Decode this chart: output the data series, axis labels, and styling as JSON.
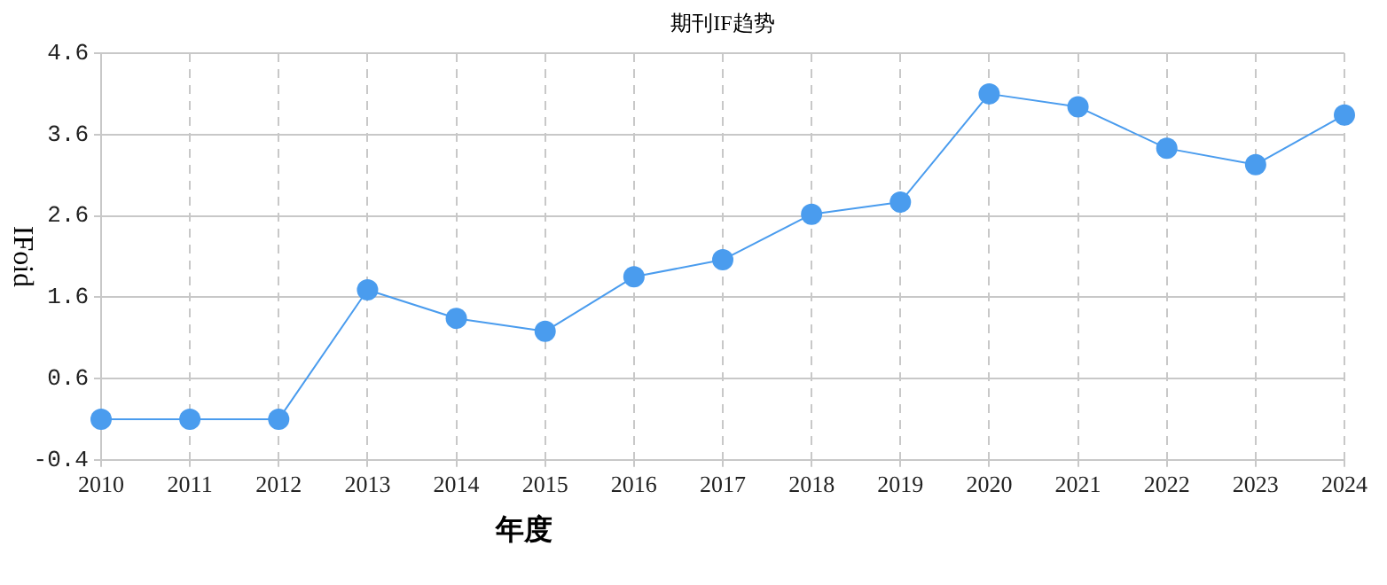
{
  "chart_data": {
    "type": "line",
    "title": "期刊IF趋势",
    "xlabel": "年度",
    "ylabel": "IFoid",
    "categories": [
      "2010",
      "2011",
      "2012",
      "2013",
      "2014",
      "2015",
      "2016",
      "2017",
      "2018",
      "2019",
      "2020",
      "2021",
      "2022",
      "2023",
      "2024"
    ],
    "series": [
      {
        "color": "#4a9cee",
        "values": [
          0.1,
          0.1,
          0.1,
          1.69,
          1.34,
          1.18,
          1.85,
          2.06,
          2.62,
          2.77,
          4.1,
          3.94,
          3.43,
          3.23,
          3.84
        ]
      }
    ],
    "ylim": [
      -0.4,
      4.6
    ],
    "yticks": [
      -0.4,
      0.6,
      1.6,
      2.6,
      3.6,
      4.6
    ],
    "grid": true,
    "marker": "circle",
    "line_style": "solid",
    "legend": false
  }
}
